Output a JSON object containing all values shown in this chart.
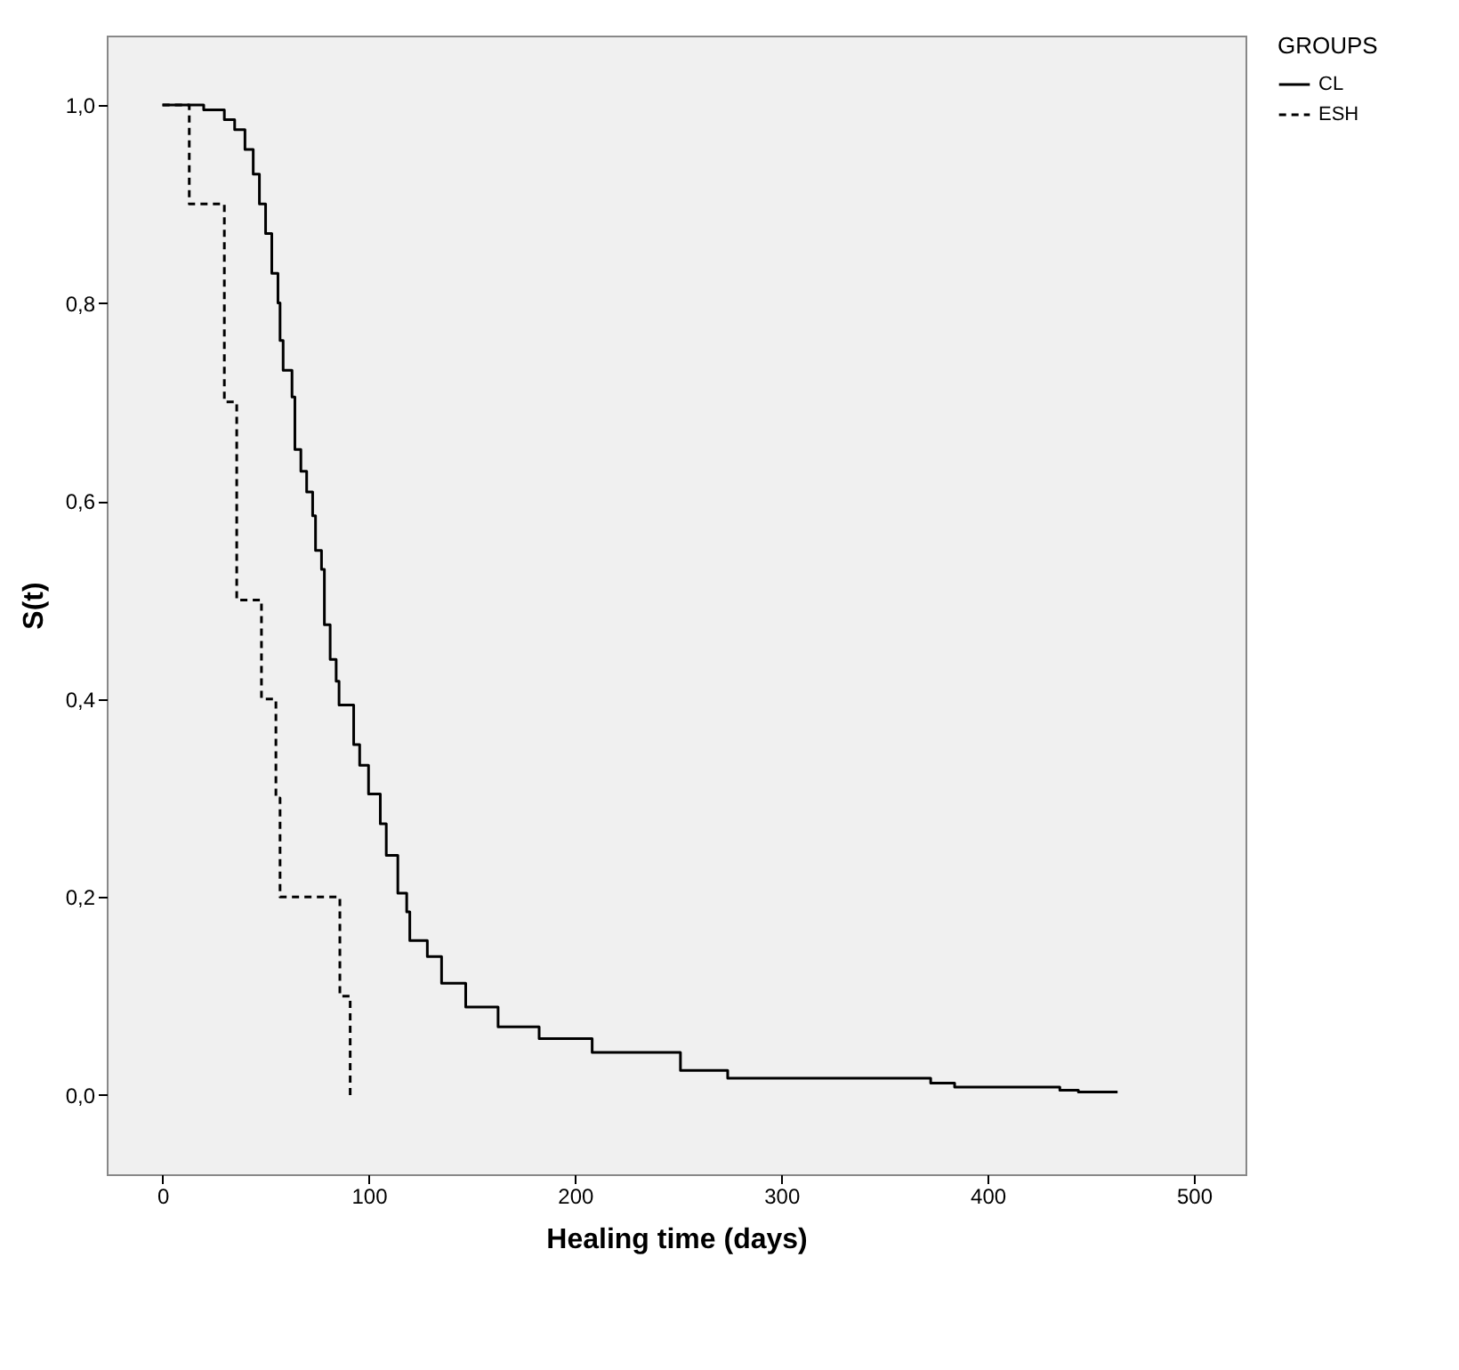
{
  "chart_data": {
    "type": "step",
    "xlabel": "Healing time (days)",
    "ylabel": "S(t)",
    "legend_title": "GROUPS",
    "legend": "top right",
    "xlim": [
      -27,
      525
    ],
    "xticks": [
      0,
      100,
      200,
      300,
      400,
      500
    ],
    "ylim": [
      -0.08,
      1.07
    ],
    "yticks": [
      {
        "value": 0,
        "label": "0,0"
      },
      {
        "value": 0.2,
        "label": "0,2"
      },
      {
        "value": 0.4,
        "label": "0,4"
      },
      {
        "value": 0.6,
        "label": "0,6"
      },
      {
        "value": 0.8,
        "label": "0,8"
      },
      {
        "value": 1.0,
        "label": "1,0"
      }
    ],
    "series": [
      {
        "name": "CL",
        "color": "#000000",
        "line_style": "solid",
        "x": [
          0,
          20,
          30,
          35,
          40,
          44,
          47,
          50,
          53,
          56,
          57,
          58.5,
          62.8,
          64.2,
          67.1,
          69.9,
          72.8,
          74.2,
          77.1,
          78.5,
          81.3,
          84.2,
          85.6,
          92.7,
          95.6,
          99.9,
          105.6,
          108.5,
          114.1,
          118.4,
          119.9,
          128.4,
          135.3,
          147,
          162.7,
          182.6,
          208.3,
          251.1,
          274,
          372.4,
          384,
          435,
          444,
          463
        ],
        "values": [
          1.0,
          0.995,
          0.985,
          0.975,
          0.955,
          0.93,
          0.9,
          0.87,
          0.83,
          0.8,
          0.762,
          0.732,
          0.705,
          0.652,
          0.63,
          0.609,
          0.585,
          0.55,
          0.531,
          0.475,
          0.44,
          0.418,
          0.394,
          0.354,
          0.333,
          0.304,
          0.274,
          0.242,
          0.204,
          0.185,
          0.156,
          0.14,
          0.113,
          0.089,
          0.069,
          0.057,
          0.043,
          0.025,
          0.017,
          0.012,
          0.008,
          0.005,
          0.003,
          0.003
        ]
      },
      {
        "name": "ESH",
        "color": "#000000",
        "line_style": "dashed",
        "x": [
          0,
          13,
          30,
          36,
          48,
          55,
          57,
          86,
          91
        ],
        "values": [
          1.0,
          0.9,
          0.7,
          0.5,
          0.4,
          0.3,
          0.2,
          0.1,
          0.0
        ]
      }
    ]
  }
}
